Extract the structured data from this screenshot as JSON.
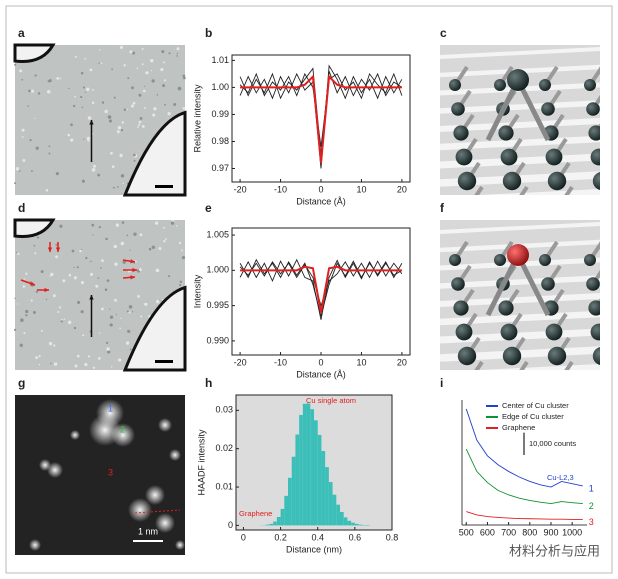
{
  "panels": [
    "a",
    "b",
    "c",
    "d",
    "e",
    "f",
    "g",
    "h",
    "i"
  ],
  "panel_g": {
    "labels": [
      "1",
      "2",
      "3"
    ],
    "scale_bar": "1 nm"
  },
  "watermark": "材料分析与应用",
  "chart_data": [
    {
      "type": "line",
      "xlabel": "Distance (Å)",
      "ylabel": "Relative intensity",
      "x": [
        -20,
        -18,
        -16,
        -14,
        -12,
        -10,
        -8,
        -6,
        -4,
        -2,
        0,
        2,
        4,
        6,
        8,
        10,
        12,
        14,
        16,
        18,
        20
      ],
      "xlim": [
        -22,
        22
      ],
      "xticks": [
        -20,
        -10,
        0,
        10,
        20
      ],
      "ylim": [
        0.965,
        1.012
      ],
      "yticks": [
        0.97,
        0.98,
        0.99,
        {
          "value": 1,
          "label": "1.00"
        },
        1.01
      ],
      "series": [
        {
          "color": "#222222",
          "values": [
            1.004,
            0.997,
            1.003,
            0.998,
            1.005,
            0.996,
            1.002,
            0.999,
            1.003,
            1.007,
            0.975,
            1.006,
            0.998,
            1.004,
            0.997,
            1.003,
            0.999,
            1.005,
            0.997,
            1.002,
            1.0
          ]
        },
        {
          "color": "#222222",
          "values": [
            0.997,
            1.004,
            0.998,
            1.003,
            0.996,
            1.004,
            0.998,
            1.005,
            0.999,
            1.002,
            0.97,
            1.008,
            1.003,
            0.996,
            1.004,
            0.998,
            1.003,
            0.996,
            1.004,
            0.998,
            1.003
          ]
        },
        {
          "color": "#222222",
          "values": [
            1.001,
            0.998,
            1.005,
            0.997,
            1.002,
            0.999,
            1.004,
            0.997,
            1.005,
            1.0,
            0.978,
            1.003,
            1.005,
            0.999,
            1.002,
            0.996,
            1.005,
            1.001,
            0.998,
            1.005,
            0.997
          ]
        },
        {
          "color": "#e02020",
          "values": [
            1,
            1,
            1,
            1,
            1,
            1,
            1,
            1,
            1.001,
            1.004,
            0.972,
            1.004,
            1.001,
            1,
            1,
            1,
            1,
            1,
            1,
            1,
            1
          ]
        }
      ]
    },
    {
      "type": "line",
      "xlabel": "Distance (Å)",
      "ylabel": "Intensity",
      "x": [
        -20,
        -18,
        -16,
        -14,
        -12,
        -10,
        -8,
        -6,
        -4,
        -2,
        0,
        2,
        4,
        6,
        8,
        10,
        12,
        14,
        16,
        18,
        20
      ],
      "xlim": [
        -22,
        22
      ],
      "xticks": [
        -20,
        -10,
        0,
        10,
        20
      ],
      "ylim": [
        0.988,
        1.006
      ],
      "yticks": [
        {
          "value": 0.99,
          "label": "0.990"
        },
        0.995,
        {
          "value": 1,
          "label": "1.000"
        },
        1.005
      ],
      "series": [
        {
          "color": "#222222",
          "values": [
            1.001,
            0.999,
            1.0015,
            0.9995,
            1.001,
            0.999,
            1.0012,
            0.9993,
            1.001,
            0.998,
            0.9935,
            0.998,
            1.001,
            0.9992,
            1.0013,
            0.999,
            1.001,
            0.9994,
            1.0012,
            0.999,
            1.001
          ]
        },
        {
          "color": "#222222",
          "values": [
            0.999,
            1.0012,
            0.999,
            1.001,
            0.9985,
            1.0013,
            0.9992,
            1.0015,
            0.999,
            0.9985,
            0.993,
            0.999,
            1.0014,
            0.999,
            1.001,
            0.9988,
            1.0012,
            0.9992,
            1.001,
            0.9993,
            1.0
          ]
        },
        {
          "color": "#222222",
          "values": [
            1.0005,
            0.9993,
            1.001,
            0.9992,
            1.0012,
            0.9995,
            1.001,
            0.999,
            1.0008,
            0.999,
            0.995,
            0.9985,
            0.9995,
            1.0012,
            0.9992,
            1.001,
            0.999,
            1.0013,
            0.9992,
            1.001,
            0.9995
          ]
        },
        {
          "color": "#e02020",
          "values": [
            1,
            1,
            1,
            1,
            1,
            1,
            1,
            1,
            1.0005,
            1.0003,
            0.994,
            1.0003,
            1.0005,
            1,
            1,
            1,
            1,
            1,
            1,
            1,
            1
          ]
        }
      ]
    },
    {
      "type": "histogram",
      "xlabel": "Distance (nm)",
      "ylabel": "HAADF intensity",
      "color": "#3cbfb8",
      "bins": [
        0,
        0.02,
        0.04,
        0.06,
        0.08,
        0.1,
        0.12,
        0.14,
        0.16,
        0.18,
        0.2,
        0.22,
        0.24,
        0.26,
        0.28,
        0.3,
        0.32,
        0.34,
        0.36,
        0.38,
        0.4,
        0.42,
        0.44,
        0.46,
        0.48,
        0.5,
        0.52,
        0.54,
        0.56,
        0.58,
        0.6,
        0.62,
        0.64,
        0.66,
        0.68,
        0.7,
        0.72,
        0.74,
        0.76,
        0.78,
        0.8
      ],
      "counts": [
        0,
        0,
        0,
        0,
        2e-05,
        6e-05,
        0.0002,
        0.0004,
        0.001,
        0.0022,
        0.0043,
        0.0077,
        0.0124,
        0.0179,
        0.0237,
        0.0288,
        0.0317,
        0.0318,
        0.0303,
        0.0274,
        0.0236,
        0.0194,
        0.0152,
        0.0113,
        0.008,
        0.0054,
        0.0035,
        0.0021,
        0.0012,
        0.0007,
        0.0004,
        0.0002,
        0.0001,
        0.0001,
        0,
        0,
        0,
        0,
        0,
        0
      ],
      "xlim": [
        -0.04,
        0.8
      ],
      "xticks": [
        0,
        0.2,
        0.4,
        0.6,
        0.8
      ],
      "ylim": [
        -0.0012,
        0.034
      ],
      "yticks": [
        0,
        0.01,
        0.02,
        0.03
      ],
      "annotations": [
        "Cu  single atom",
        "Graphene"
      ]
    },
    {
      "type": "line",
      "legend": "upper right",
      "x": [
        500,
        550,
        600,
        650,
        700,
        750,
        800,
        850,
        900,
        950,
        1000,
        1050
      ],
      "xlim": [
        480,
        1070
      ],
      "xticks": [
        500,
        600,
        700,
        800,
        900,
        1000
      ],
      "ylim": [
        0,
        56000
      ],
      "series": [
        {
          "name": "Center of Cu cluster",
          "color": "#2040d0",
          "end_label": "1",
          "values": [
            52000,
            38000,
            31000,
            27000,
            24000,
            21500,
            19500,
            18000,
            17000,
            19500,
            18500,
            17500
          ]
        },
        {
          "name": "Edge of Cu cluster",
          "color": "#109030",
          "end_label": "2",
          "values": [
            34000,
            24000,
            19000,
            15500,
            13500,
            12000,
            11000,
            10200,
            9600,
            10500,
            10000,
            9600
          ]
        },
        {
          "name": "Graphene",
          "color": "#e02020",
          "end_label": "3",
          "values": [
            6000,
            4500,
            3800,
            3400,
            3100,
            2900,
            2800,
            2700,
            2600,
            2600,
            2500,
            2500
          ]
        }
      ],
      "scale_bar": {
        "value": 10000,
        "label": "10,000 counts"
      },
      "annotations": [
        "Cu-L2,3"
      ]
    }
  ]
}
